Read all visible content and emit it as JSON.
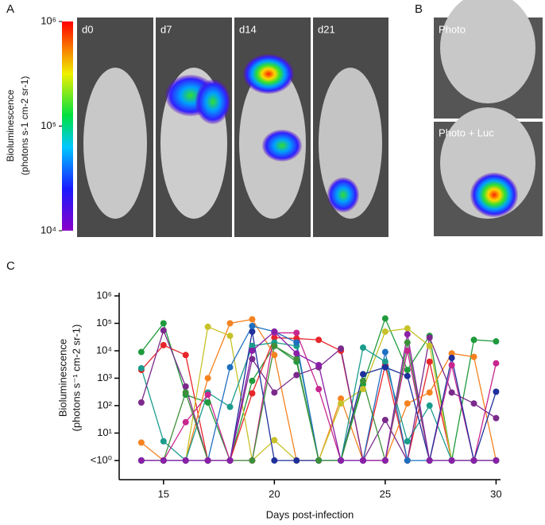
{
  "chart_data": [
    {
      "type": "image-strip",
      "label": "A",
      "ylabel": [
        "Bioluminescence",
        "(photons s-1 cm-2 sr-1)"
      ],
      "log": true,
      "ylim": [
        10000,
        1000000
      ],
      "yticks": [
        {
          "value": 10000,
          "label": "10⁴"
        },
        {
          "value": 100000,
          "label": "10⁵"
        },
        {
          "value": 1000000,
          "label": "10⁶"
        }
      ],
      "panels": [
        "d0",
        "d7",
        "d14",
        "d21"
      ]
    },
    {
      "type": "image-pair",
      "label": "B",
      "panels": [
        "Photo",
        "Photo + Luc"
      ]
    },
    {
      "type": "line",
      "label": "C",
      "xlabel": "Days post-infection",
      "ylabel": [
        "Bioluminescence",
        "(photons s⁻¹ cm-2 sr-1)"
      ],
      "log": true,
      "xlim": [
        13,
        30.2
      ],
      "xticks": [
        15,
        20,
        25,
        30
      ],
      "ylim": [
        0.2,
        1000000
      ],
      "yticks": [
        {
          "value": 1,
          "label": "<10⁰"
        },
        {
          "value": 10,
          "label": "10¹"
        },
        {
          "value": 100,
          "label": "10²"
        },
        {
          "value": 1000,
          "label": "10³"
        },
        {
          "value": 10000,
          "label": "10⁴"
        },
        {
          "value": 100000,
          "label": "10⁵"
        },
        {
          "value": 1000000,
          "label": "10⁶"
        }
      ],
      "x": [
        14,
        15,
        16,
        17,
        18,
        19,
        20,
        21,
        22,
        23,
        24,
        25,
        26,
        27,
        28,
        29,
        30
      ],
      "series": [
        {
          "color": "#1f9a3c",
          "values": [
            9000,
            100000,
            250,
            130,
            1,
            800,
            15000,
            4000,
            1,
            1,
            600,
            150000,
            2000,
            35000,
            1,
            25000,
            22000
          ]
        },
        {
          "color": "#e8252b",
          "values": [
            2000,
            16000,
            7000,
            1,
            1,
            280,
            30000,
            28000,
            25000,
            10000,
            1,
            3000,
            1,
            4000,
            1,
            1,
            1
          ]
        },
        {
          "color": "#f58220",
          "values": [
            4.5,
            1,
            1,
            1000,
            100000,
            140000,
            7000,
            1,
            1,
            180,
            1,
            1,
            120,
            300,
            8000,
            6000,
            1
          ]
        },
        {
          "color": "#c8c22a",
          "values": [
            1,
            1,
            1,
            75000,
            35000,
            1,
            5.5,
            1,
            1,
            120,
            400,
            50000,
            65000,
            15000,
            1,
            1,
            1
          ]
        },
        {
          "color": "#1a9c8c",
          "values": [
            2300,
            5,
            1,
            300,
            90,
            15000,
            20000,
            15000,
            1,
            1,
            13000,
            4000,
            5,
            100,
            1,
            1,
            1
          ]
        },
        {
          "color": "#7b2a8c",
          "values": [
            130,
            55000,
            500,
            1,
            1,
            5000,
            300,
            1300,
            2500,
            12000,
            1,
            30,
            1,
            30000,
            300,
            120,
            35
          ]
        },
        {
          "color": "#c8268f",
          "values": [
            1,
            1,
            25,
            250,
            1,
            1,
            45000,
            45000,
            400,
            1,
            1,
            1,
            10000,
            1,
            3000,
            1,
            3500
          ]
        },
        {
          "color": "#1f2f9c",
          "values": [
            1,
            1,
            1,
            1,
            1,
            50000,
            1,
            1,
            1,
            1,
            1400,
            2500,
            1200,
            1,
            5500,
            1,
            320
          ]
        },
        {
          "color": "#1e6fc1",
          "values": [
            1,
            1,
            1,
            1,
            2500,
            80000,
            50000,
            20000,
            1,
            1,
            1,
            9000,
            1,
            1,
            1,
            1,
            1
          ]
        },
        {
          "color": "#3d8f3a",
          "values": [
            1,
            1,
            300,
            1,
            1,
            1,
            15000,
            5000,
            1,
            1,
            800,
            1,
            20000,
            1,
            1,
            1,
            1
          ]
        },
        {
          "color": "#8a1fa8",
          "values": [
            1,
            1,
            1,
            1,
            1,
            10000,
            50000,
            8000,
            3000,
            1,
            1,
            1,
            40000,
            1,
            1,
            1,
            1
          ]
        }
      ]
    }
  ]
}
